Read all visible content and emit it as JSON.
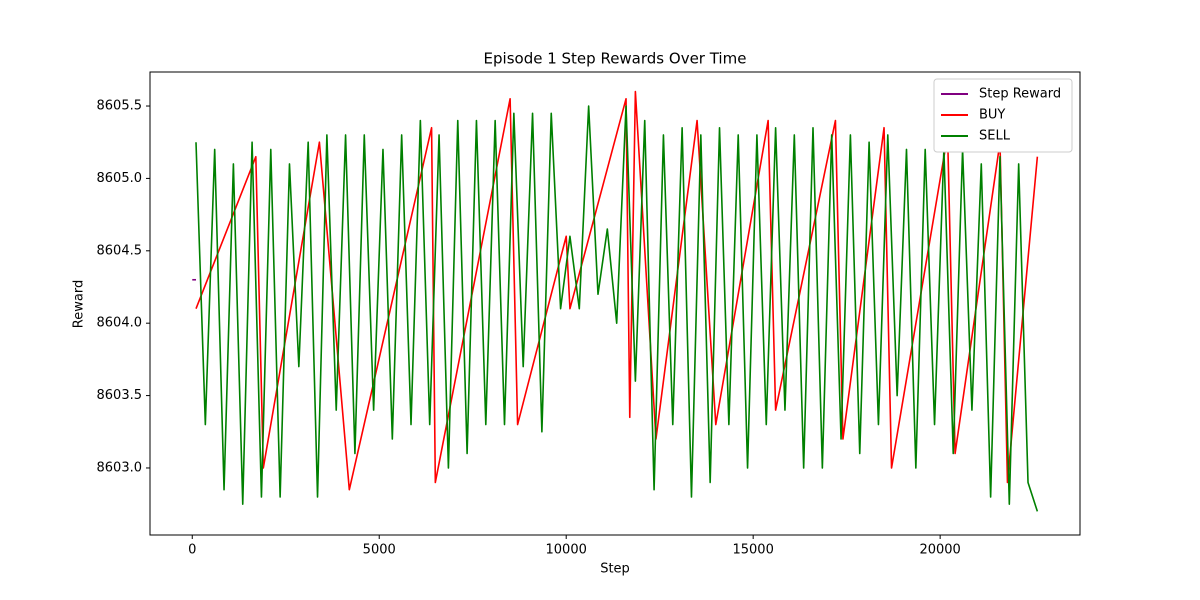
{
  "chart_data": {
    "type": "line",
    "title": "Episode 1 Step Rewards Over Time",
    "x_label": "Step",
    "y_label": "Reward",
    "xlim": [
      -1130,
      23740
    ],
    "ylim": [
      8602.537,
      8605.735
    ],
    "xticks": [
      0,
      5000,
      10000,
      15000,
      20000
    ],
    "yticks": [
      {
        "value": 8603,
        "label": "8603.0"
      },
      8603.5,
      {
        "value": 8604,
        "label": "8604.0"
      },
      8604.5,
      {
        "value": 8605,
        "label": "8605.0"
      },
      8605.5
    ],
    "legend": "upper right",
    "series": [
      {
        "name": "Step Reward",
        "color": "#800080",
        "x": [
          0,
          100
        ],
        "values": [
          8604.3,
          8604.3
        ]
      },
      {
        "name": "BUY",
        "color": "#ff0000",
        "x": [
          100,
          1700,
          1900,
          3400,
          4200,
          6400,
          6500,
          8500,
          8700,
          10000,
          10100,
          11600,
          11700,
          11850,
          12400,
          13500,
          14000,
          15400,
          15600,
          17200,
          17400,
          18500,
          18700,
          20200,
          20400,
          21600,
          21800,
          22600
        ],
        "values": [
          8604.1,
          8605.15,
          8603.0,
          8605.25,
          8602.85,
          8605.35,
          8602.9,
          8605.55,
          8603.3,
          8604.6,
          8604.1,
          8605.55,
          8603.35,
          8605.6,
          8603.2,
          8605.4,
          8603.3,
          8605.4,
          8603.4,
          8605.4,
          8603.2,
          8605.35,
          8603.0,
          8605.3,
          8603.1,
          8605.25,
          8602.9,
          8605.15
        ]
      },
      {
        "name": "SELL",
        "color": "#008000",
        "x": [
          100,
          350,
          600,
          850,
          1100,
          1350,
          1600,
          1850,
          2100,
          2350,
          2600,
          2850,
          3100,
          3350,
          3600,
          3850,
          4100,
          4350,
          4600,
          4850,
          5100,
          5350,
          5600,
          5850,
          6100,
          6350,
          6600,
          6850,
          7100,
          7350,
          7600,
          7850,
          8100,
          8350,
          8600,
          8850,
          9100,
          9350,
          9600,
          9850,
          10100,
          10350,
          10600,
          10850,
          11100,
          11350,
          11600,
          11850,
          12100,
          12350,
          12600,
          12850,
          13100,
          13350,
          13600,
          13850,
          14100,
          14350,
          14600,
          14850,
          15100,
          15350,
          15600,
          15850,
          16100,
          16350,
          16600,
          16850,
          17100,
          17350,
          17600,
          17850,
          18100,
          18350,
          18600,
          18850,
          19100,
          19350,
          19600,
          19850,
          20100,
          20350,
          20600,
          20850,
          21100,
          21350,
          21600,
          21850,
          22100,
          22350,
          22600
        ],
        "values": [
          8605.25,
          8603.3,
          8605.2,
          8602.85,
          8605.1,
          8602.75,
          8605.25,
          8602.8,
          8605.2,
          8602.8,
          8605.1,
          8603.7,
          8605.25,
          8602.8,
          8605.3,
          8603.4,
          8605.3,
          8603.1,
          8605.3,
          8603.4,
          8605.2,
          8603.2,
          8605.3,
          8603.3,
          8605.4,
          8603.3,
          8605.3,
          8603.0,
          8605.4,
          8603.1,
          8605.4,
          8603.3,
          8605.4,
          8603.3,
          8605.45,
          8603.7,
          8605.45,
          8603.25,
          8605.45,
          8604.1,
          8604.6,
          8604.1,
          8605.5,
          8604.2,
          8604.65,
          8604.0,
          8605.5,
          8603.6,
          8605.4,
          8602.85,
          8605.3,
          8603.3,
          8605.35,
          8602.8,
          8605.3,
          8602.9,
          8605.35,
          8603.3,
          8605.3,
          8603.0,
          8605.3,
          8603.3,
          8605.35,
          8603.4,
          8605.3,
          8603.0,
          8605.35,
          8603.0,
          8605.3,
          8603.2,
          8605.3,
          8603.1,
          8605.25,
          8603.3,
          8605.3,
          8603.5,
          8605.2,
          8603.0,
          8605.2,
          8603.3,
          8605.2,
          8603.1,
          8605.2,
          8603.4,
          8605.1,
          8602.8,
          8605.15,
          8602.75,
          8605.1,
          8602.9,
          8602.7
        ]
      }
    ]
  }
}
